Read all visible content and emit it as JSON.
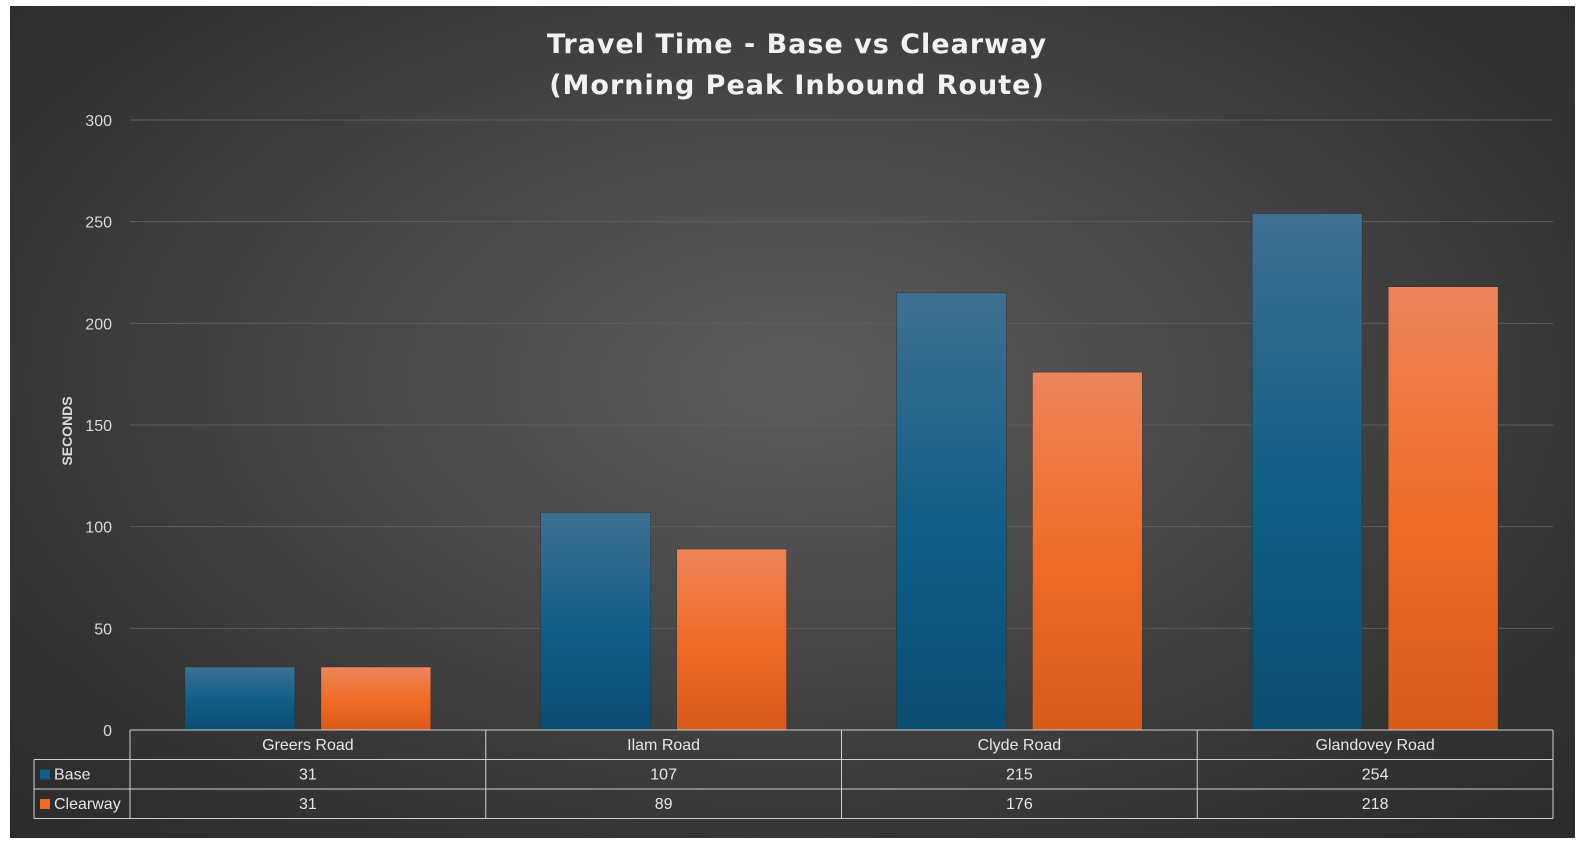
{
  "chart_data": {
    "type": "bar",
    "title_lines": [
      "Travel Time - Base vs Clearway",
      "(Morning Peak Inbound Route)"
    ],
    "ylabel": "SECONDS",
    "xlabel": "",
    "ylim": [
      0,
      300
    ],
    "yticks": [
      "0",
      "50",
      "100",
      "150",
      "200",
      "250",
      "300"
    ],
    "categories": [
      "Greers Road",
      "Ilam Road",
      "Clyde Road",
      "Glandovey Road"
    ],
    "series": [
      {
        "name": "Base",
        "values": [
          31,
          107,
          215,
          254
        ],
        "color": "#0e5e86",
        "table_values": [
          "31",
          "107",
          "215",
          "254"
        ]
      },
      {
        "name": "Clearway",
        "values": [
          31,
          89,
          176,
          218
        ],
        "color": "#f06a23",
        "table_values": [
          "31",
          "89",
          "176",
          "218"
        ]
      }
    ],
    "grid": true,
    "legend": "data-table",
    "background": "#3f3f3f"
  }
}
